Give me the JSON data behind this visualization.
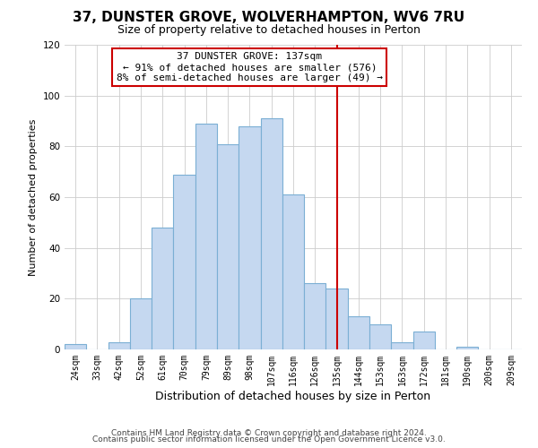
{
  "title": "37, DUNSTER GROVE, WOLVERHAMPTON, WV6 7RU",
  "subtitle": "Size of property relative to detached houses in Perton",
  "xlabel": "Distribution of detached houses by size in Perton",
  "ylabel": "Number of detached properties",
  "bar_labels": [
    "24sqm",
    "33sqm",
    "42sqm",
    "52sqm",
    "61sqm",
    "70sqm",
    "79sqm",
    "89sqm",
    "98sqm",
    "107sqm",
    "116sqm",
    "126sqm",
    "135sqm",
    "144sqm",
    "153sqm",
    "163sqm",
    "172sqm",
    "181sqm",
    "190sqm",
    "200sqm",
    "209sqm"
  ],
  "bar_values": [
    2,
    0,
    3,
    20,
    48,
    69,
    89,
    81,
    88,
    91,
    61,
    26,
    24,
    13,
    10,
    3,
    7,
    0,
    1,
    0,
    0
  ],
  "bar_color": "#c5d8f0",
  "bar_edge_color": "#7bafd4",
  "vline_x_index": 12,
  "vline_color": "#cc0000",
  "annotation_title": "37 DUNSTER GROVE: 137sqm",
  "annotation_line1": "← 91% of detached houses are smaller (576)",
  "annotation_line2": "8% of semi-detached houses are larger (49) →",
  "annotation_box_edge": "#cc0000",
  "ylim": [
    0,
    120
  ],
  "yticks": [
    0,
    20,
    40,
    60,
    80,
    100,
    120
  ],
  "footer1": "Contains HM Land Registry data © Crown copyright and database right 2024.",
  "footer2": "Contains public sector information licensed under the Open Government Licence v3.0.",
  "background_color": "#ffffff",
  "grid_color": "#cccccc",
  "title_fontsize": 11,
  "subtitle_fontsize": 9,
  "ylabel_fontsize": 8,
  "xlabel_fontsize": 9,
  "tick_fontsize": 7,
  "annotation_fontsize": 8,
  "footer_fontsize": 6.5
}
